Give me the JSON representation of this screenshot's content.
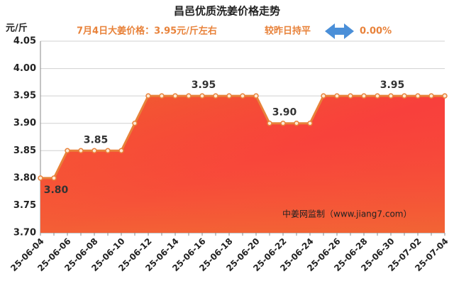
{
  "chart_data": {
    "type": "area",
    "title": "昌邑优质洗姜价格走势",
    "y_unit": "元/斤",
    "subtitle": "7月4日大姜价格：3.95元/斤左右",
    "change_text": "较昨日持平",
    "change_value": "0.00%",
    "watermark": "中姜网监制（www.jiang7.com）",
    "categories": [
      "25-06-04",
      null,
      "25-06-06",
      null,
      "25-06-08",
      null,
      "25-06-10",
      null,
      "25-06-12",
      null,
      "25-06-14",
      null,
      "25-06-16",
      null,
      "25-06-18",
      null,
      "25-06-20",
      null,
      "25-06-22",
      null,
      "25-06-24",
      null,
      "25-06-26",
      null,
      "25-06-28",
      null,
      "25-06-30",
      null,
      "25-07-02",
      null,
      "25-07-04"
    ],
    "values": [
      3.8,
      3.8,
      3.85,
      3.85,
      3.85,
      3.85,
      3.85,
      3.9,
      3.95,
      3.95,
      3.95,
      3.95,
      3.95,
      3.95,
      3.95,
      3.95,
      3.95,
      3.9,
      3.9,
      3.9,
      3.9,
      3.95,
      3.95,
      3.95,
      3.95,
      3.95,
      3.95,
      3.95,
      3.95,
      3.95,
      3.95
    ],
    "value_labels": [
      "3.80",
      null,
      null,
      null,
      "3.85",
      null,
      null,
      null,
      null,
      null,
      null,
      null,
      "3.95",
      null,
      null,
      null,
      null,
      null,
      "3.90",
      null,
      null,
      null,
      null,
      null,
      null,
      null,
      "3.95",
      null,
      null,
      null,
      null
    ],
    "color": "#e8823a",
    "ylim": [
      3.7,
      4.05
    ],
    "yticks": [
      {
        "value": 3.7,
        "label": "3.70"
      },
      {
        "value": 3.75,
        "label": "3.75"
      },
      {
        "value": 3.8,
        "label": "3.80"
      },
      {
        "value": 3.85,
        "label": "3.85"
      },
      {
        "value": 3.9,
        "label": "3.90"
      },
      {
        "value": 3.95,
        "label": "3.95"
      },
      {
        "value": 4.0,
        "label": "4.00"
      },
      {
        "value": 4.05,
        "label": "4.05"
      }
    ],
    "grid": true
  }
}
